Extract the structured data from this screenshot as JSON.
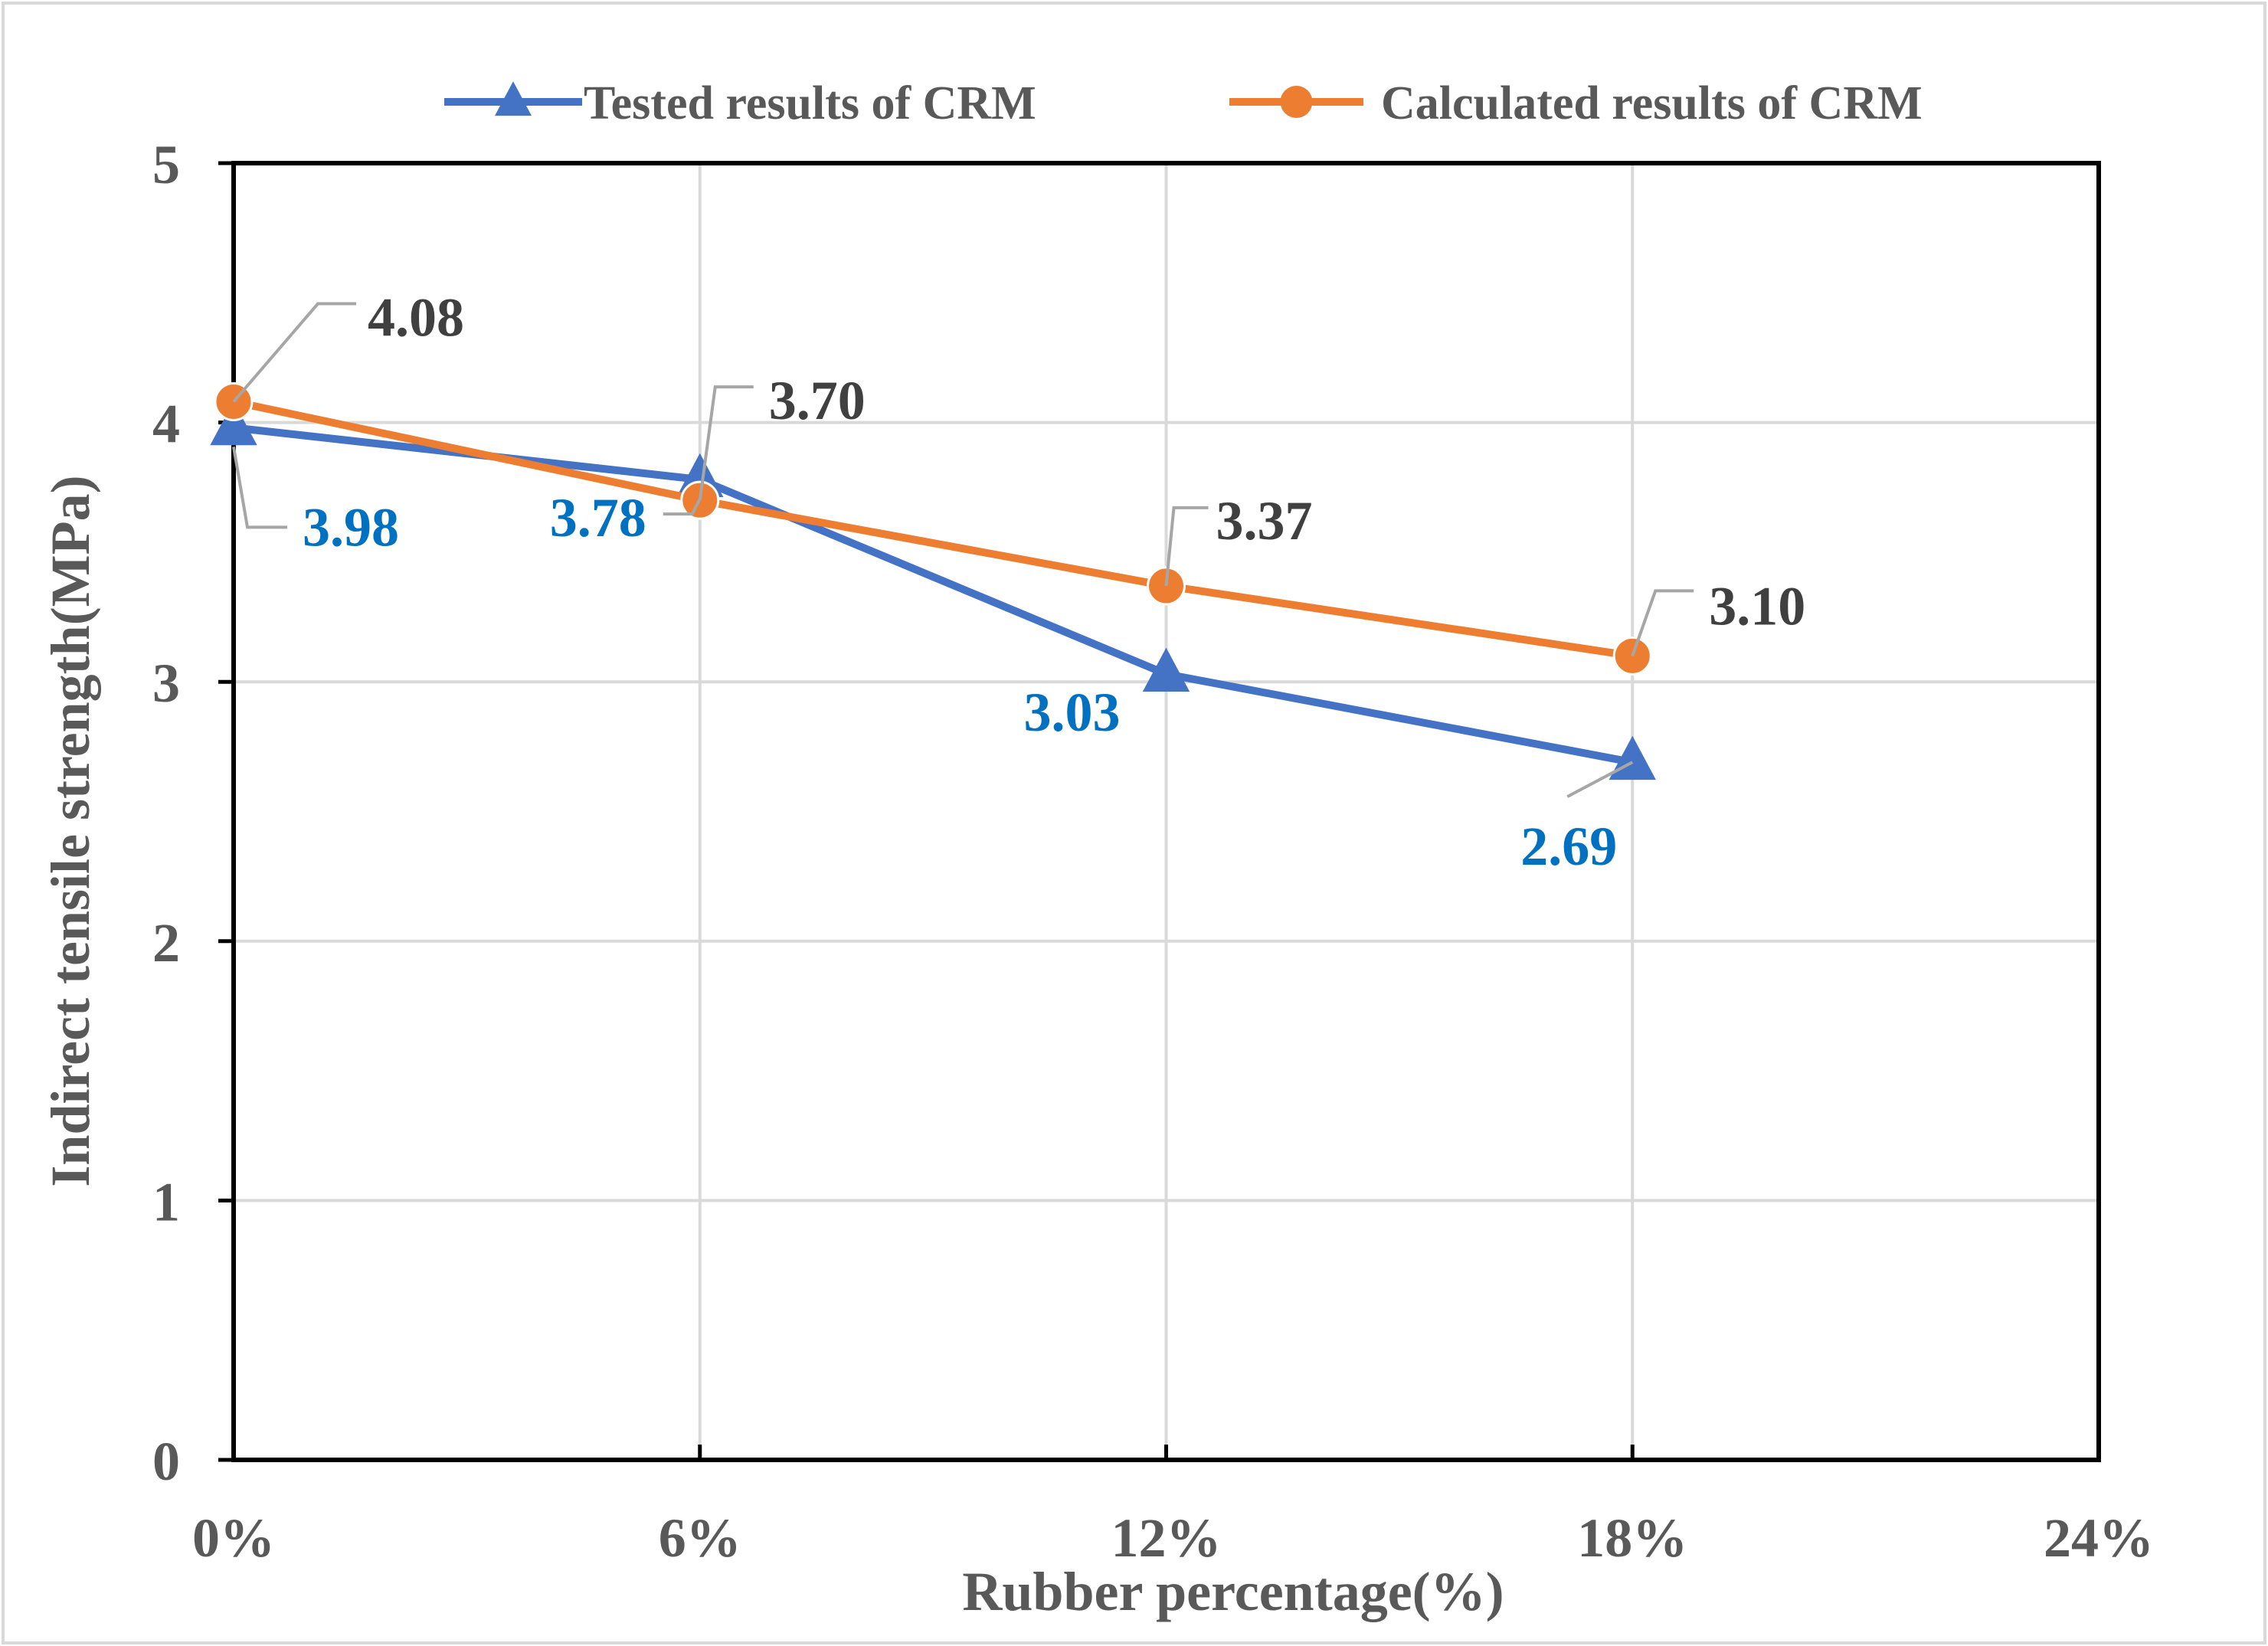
{
  "chart_data": {
    "type": "line",
    "title": "",
    "xlabel": "Rubber percentage(%)",
    "ylabel": "Indirect tensile  strength(MPa)",
    "x": [
      0,
      6,
      12,
      18
    ],
    "x_tick_values": [
      0,
      6,
      12,
      18,
      24
    ],
    "x_tick_labels": [
      "0%",
      "6%",
      "12%",
      "18%",
      "24%"
    ],
    "xlim": [
      0,
      24
    ],
    "y_tick_values": [
      0,
      1,
      2,
      3,
      4,
      5
    ],
    "y_tick_labels": [
      "0",
      "1",
      "2",
      "3",
      "4",
      "5"
    ],
    "ylim": [
      0,
      5
    ],
    "grid": true,
    "legend_position": "top",
    "series": [
      {
        "name": "Tested results  of CRM",
        "marker": "triangle",
        "color": "#4472C4",
        "label_color": "#0070C0",
        "values": [
          3.98,
          3.78,
          3.03,
          2.69
        ],
        "labels": [
          "3.98",
          "3.78",
          "3.03",
          "2.69"
        ]
      },
      {
        "name": "Calculated results  of CRM",
        "marker": "circle",
        "color": "#ED7D31",
        "label_color": "#404040",
        "values": [
          4.08,
          3.7,
          3.37,
          3.1
        ],
        "labels": [
          "4.08",
          "3.70",
          "3.37",
          "3.10"
        ]
      }
    ],
    "colors": {
      "frame": "#d9d9d9",
      "axis": "#000000",
      "grid": "#d9d9d9",
      "text": "#595959",
      "leader": "#a6a6a6"
    }
  }
}
